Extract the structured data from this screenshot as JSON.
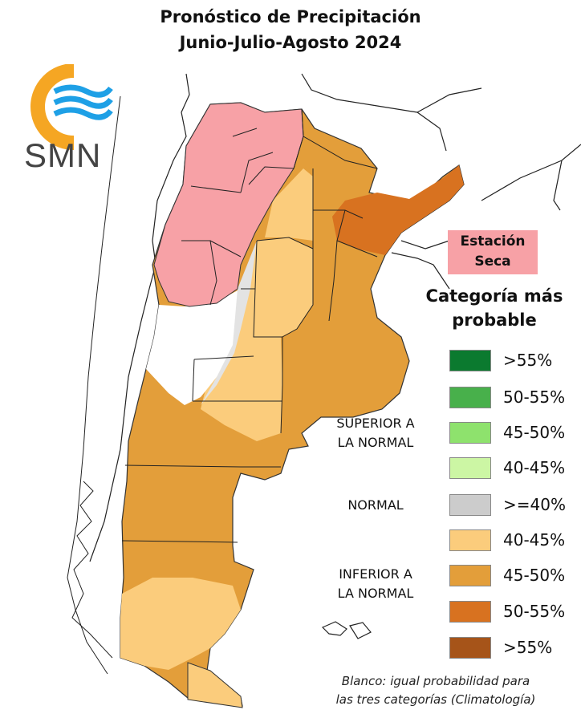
{
  "title": {
    "line1": "Pronóstico de Precipitación",
    "line2": "Junio-Julio-Agosto 2024"
  },
  "logo": {
    "text": "SMN",
    "colors": {
      "ring": "#f5a623",
      "waves": "#1ea0e6"
    }
  },
  "dry_season_label": {
    "line1": "Estación",
    "line2": "Seca"
  },
  "legend": {
    "title_line1": "Categoría más",
    "title_line2": "probable",
    "groups": {
      "superior": {
        "line1": "SUPERIOR A",
        "line2": "LA NORMAL"
      },
      "normal": "NORMAL",
      "inferior": {
        "line1": "INFERIOR A",
        "line2": "LA NORMAL"
      }
    },
    "items": [
      {
        "label": ">55%",
        "color": "#0b7a2f"
      },
      {
        "label": "50-55%",
        "color": "#48b04b"
      },
      {
        "label": "45-50%",
        "color": "#8ee26d"
      },
      {
        "label": "40-45%",
        "color": "#ccf6a4"
      },
      {
        "label": ">=40%",
        "color": "#cccccc"
      },
      {
        "label": "40-45%",
        "color": "#fbcc7c"
      },
      {
        "label": "45-50%",
        "color": "#e39e3a"
      },
      {
        "label": "50-55%",
        "color": "#d87220"
      },
      {
        "label": ">55%",
        "color": "#a65419"
      }
    ]
  },
  "note": {
    "line1": "Blanco: igual probabilidad para",
    "line2": "las tres categorías (Climatología)"
  },
  "map_colors": {
    "dry": "#f7a1a6",
    "below_40_45": "#fbcc7c",
    "below_45_50": "#e39e3a",
    "below_50_55": "#d87220",
    "normal": "#cccccc"
  }
}
